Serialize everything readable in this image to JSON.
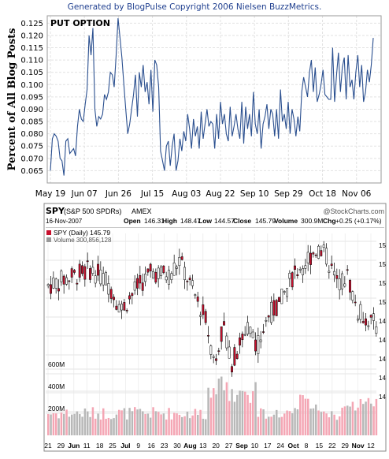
{
  "blogpulse": {
    "header": "Generated by BlogPulse Copyright 2006 Nielsen BuzzMetrics.",
    "chart_data": {
      "type": "line",
      "title": "PUT OPTION",
      "ylabel": "Percent of All Blog Posts",
      "ylim": [
        0.06,
        0.128
      ],
      "yticks": [
        "0.065",
        "0.070",
        "0.075",
        "0.080",
        "0.085",
        "0.090",
        "0.095",
        "0.100",
        "0.105",
        "0.110",
        "0.115",
        "0.120",
        "0.125"
      ],
      "xticks": [
        "May 19",
        "Jun 07",
        "Jun 26",
        "Jul 15",
        "Aug 03",
        "Aug 22",
        "Sep 10",
        "Sep 29",
        "Oct 18",
        "Nov 06"
      ],
      "series_color": "#2a4f8f",
      "values": [
        0.065,
        0.078,
        0.08,
        0.079,
        0.077,
        0.07,
        0.069,
        0.063,
        0.077,
        0.078,
        0.072,
        0.073,
        0.074,
        0.071,
        0.083,
        0.09,
        0.086,
        0.085,
        0.092,
        0.098,
        0.12,
        0.112,
        0.123,
        0.09,
        0.083,
        0.087,
        0.086,
        0.088,
        0.096,
        0.094,
        0.097,
        0.105,
        0.104,
        0.099,
        0.112,
        0.127,
        0.119,
        0.111,
        0.1,
        0.09,
        0.08,
        0.084,
        0.09,
        0.096,
        0.104,
        0.087,
        0.105,
        0.099,
        0.108,
        0.097,
        0.101,
        0.092,
        0.106,
        0.089,
        0.11,
        0.108,
        0.099,
        0.073,
        0.069,
        0.065,
        0.075,
        0.077,
        0.067,
        0.075,
        0.08,
        0.065,
        0.069,
        0.078,
        0.073,
        0.081,
        0.077,
        0.088,
        0.082,
        0.074,
        0.086,
        0.079,
        0.083,
        0.074,
        0.089,
        0.078,
        0.084,
        0.09,
        0.083,
        0.085,
        0.084,
        0.074,
        0.088,
        0.078,
        0.093,
        0.084,
        0.088,
        0.08,
        0.077,
        0.091,
        0.079,
        0.083,
        0.088,
        0.082,
        0.078,
        0.093,
        0.076,
        0.091,
        0.082,
        0.088,
        0.079,
        0.097,
        0.084,
        0.08,
        0.09,
        0.074,
        0.084,
        0.087,
        0.092,
        0.082,
        0.09,
        0.088,
        0.079,
        0.09,
        0.078,
        0.098,
        0.085,
        0.088,
        0.082,
        0.093,
        0.08,
        0.09,
        0.086,
        0.079,
        0.087,
        0.081,
        0.097,
        0.103,
        0.099,
        0.095,
        0.105,
        0.11,
        0.097,
        0.107,
        0.093,
        0.096,
        0.1,
        0.106,
        0.096,
        0.095,
        0.094,
        0.094,
        0.115,
        0.093,
        0.104,
        0.113,
        0.097,
        0.107,
        0.111,
        0.094,
        0.112,
        0.099,
        0.102,
        0.094,
        0.105,
        0.112,
        0.099,
        0.108,
        0.093,
        0.097,
        0.106,
        0.101,
        0.108,
        0.119
      ]
    }
  },
  "stockcharts": {
    "symbol": "SPY",
    "name": "(S&P 500 SPDRs)",
    "exchange": "AMEX",
    "brand": "@StockCharts.com",
    "date": "16-Nov-2007",
    "open_label": "Open",
    "open": "146.31",
    "high_label": "High",
    "high": "148.47",
    "low_label": "Low",
    "low": "144.57",
    "close_label": "Close",
    "close": "145.79",
    "volume_label": "Volume",
    "volume": "300.9M",
    "chg_label": "Chg",
    "chg": "+0.25 (+0.17%)",
    "legend_price": "SPY (Daily) 145.79",
    "legend_volume": "Volume 300,856,128",
    "up_color": "#ffffff",
    "down_color": "#c8102e",
    "vol_up_color": "#f4a6b4",
    "vol_down_color": "#b8b8b8",
    "chart_data": {
      "type": "candlestick",
      "ylim": [
        136,
        157
      ],
      "volume_ylim": [
        0,
        800
      ],
      "volume_ticks": [
        "200M",
        "400M",
        "600M"
      ],
      "date_labels": [
        "21",
        "29",
        "Jun",
        "11",
        "18",
        "25",
        "Jul",
        "9",
        "16",
        "23",
        "30",
        "Aug",
        "13",
        "20",
        "27",
        "Sep",
        "10",
        "17",
        "24",
        "Oct",
        "8",
        "15",
        "22",
        "29",
        "Nov",
        "12"
      ],
      "right_axis_labels": [
        "15",
        "15",
        "15",
        "15",
        "14",
        "14",
        "14",
        "14",
        "14"
      ]
    }
  }
}
